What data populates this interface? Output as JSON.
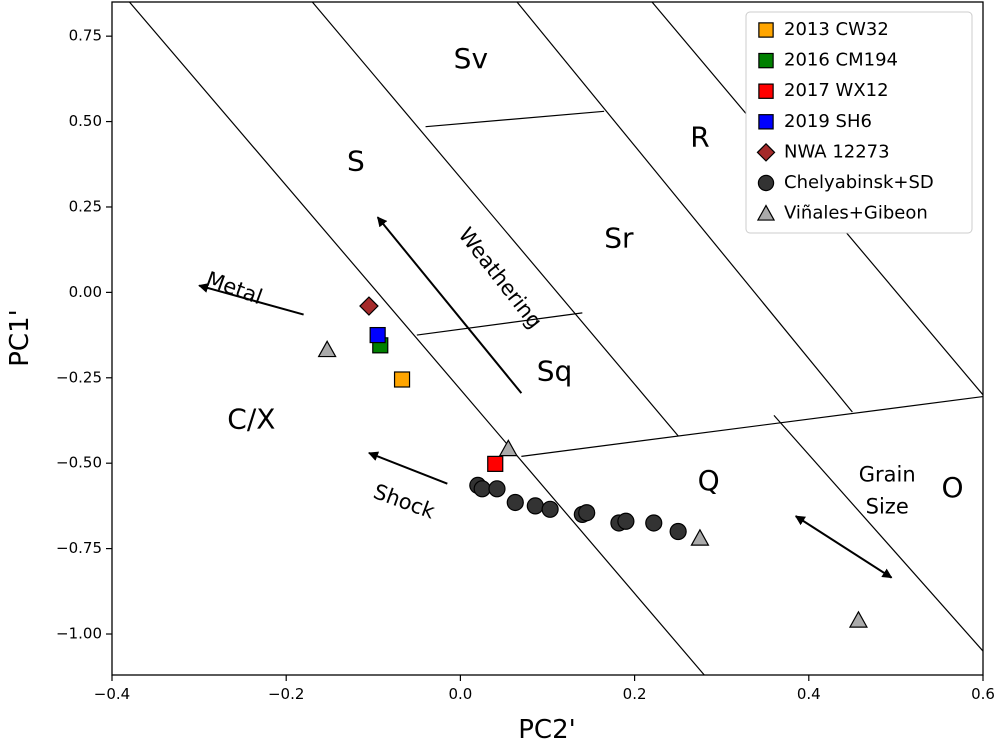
{
  "chart_data": {
    "type": "scatter",
    "xlabel": "PC2'",
    "ylabel": "PC1'",
    "xlim": [
      -0.4,
      0.6
    ],
    "ylim": [
      -1.12,
      0.85
    ],
    "xticks": [
      {
        "value": -0.4,
        "label": "−0.4"
      },
      {
        "value": -0.2,
        "label": "−0.2"
      },
      {
        "value": 0.0,
        "label": "0.0"
      },
      {
        "value": 0.2,
        "label": "0.2"
      },
      {
        "value": 0.4,
        "label": "0.4"
      },
      {
        "value": 0.6,
        "label": "0.6"
      }
    ],
    "yticks": [
      {
        "value": 0.75,
        "label": "0.75"
      },
      {
        "value": 0.5,
        "label": "0.50"
      },
      {
        "value": 0.25,
        "label": "0.25"
      },
      {
        "value": 0.0,
        "label": "0.00"
      },
      {
        "value": -0.25,
        "label": "−0.25"
      },
      {
        "value": -0.5,
        "label": "−0.50"
      },
      {
        "value": -0.75,
        "label": "−0.75"
      },
      {
        "value": -1.0,
        "label": "−1.00"
      }
    ],
    "boundaries": [
      {
        "from": [
          -0.38,
          0.85
        ],
        "to": [
          0.28,
          -1.12
        ]
      },
      {
        "from": [
          -0.17,
          0.85
        ],
        "to": [
          0.25,
          -0.42
        ]
      },
      {
        "from": [
          0.065,
          0.85
        ],
        "to": [
          0.45,
          -0.35
        ]
      },
      {
        "from": [
          0.22,
          0.85
        ],
        "to": [
          0.6,
          -0.3
        ]
      },
      {
        "from": [
          0.36,
          -0.36
        ],
        "to": [
          0.6,
          -1.05
        ]
      },
      {
        "from": [
          -0.04,
          0.485
        ],
        "to": [
          0.165,
          0.53
        ]
      },
      {
        "from": [
          -0.05,
          -0.125
        ],
        "to": [
          0.14,
          -0.06
        ]
      },
      {
        "from": [
          0.07,
          -0.48
        ],
        "to": [
          0.6,
          -0.305
        ]
      }
    ],
    "region_labels": [
      {
        "text": "Sv",
        "x": 0.012,
        "y": 0.68
      },
      {
        "text": "R",
        "x": 0.275,
        "y": 0.45
      },
      {
        "text": "S",
        "x": -0.12,
        "y": 0.38
      },
      {
        "text": "Sr",
        "x": 0.182,
        "y": 0.155
      },
      {
        "text": "Sq",
        "x": 0.108,
        "y": -0.235
      },
      {
        "text": "C/X",
        "x": -0.24,
        "y": -0.375
      },
      {
        "text": "Q",
        "x": 0.285,
        "y": -0.555
      },
      {
        "text": "O",
        "x": 0.565,
        "y": -0.575
      }
    ],
    "annotations": [
      {
        "text": "Metal",
        "x": -0.26,
        "y": 0.01,
        "rotation": 20,
        "lines": [
          "Metal"
        ]
      },
      {
        "text": "Weathering",
        "x": 0.045,
        "y": 0.04,
        "rotation": 52,
        "lines": [
          "Weathering"
        ]
      },
      {
        "text": "Shock",
        "x": -0.065,
        "y": -0.615,
        "rotation": 20,
        "lines": [
          "Shock"
        ]
      },
      {
        "text": "Grain Size",
        "x": 0.49,
        "y": -0.565,
        "rotation": 0,
        "lines": [
          "Grain",
          "Size"
        ]
      }
    ],
    "arrows": [
      {
        "name": "metal",
        "from": [
          -0.18,
          -0.065
        ],
        "to": [
          -0.3,
          0.02
        ],
        "heads": [
          "end"
        ]
      },
      {
        "name": "weathering",
        "from": [
          0.07,
          -0.295
        ],
        "to": [
          -0.095,
          0.22
        ],
        "heads": [
          "end"
        ]
      },
      {
        "name": "shock",
        "from": [
          -0.015,
          -0.56
        ],
        "to": [
          -0.105,
          -0.47
        ],
        "heads": [
          "end"
        ]
      },
      {
        "name": "grain-size",
        "from": [
          0.385,
          -0.655
        ],
        "to": [
          0.495,
          -0.835
        ],
        "heads": [
          "start",
          "end"
        ]
      }
    ],
    "series": [
      {
        "name": "2013 CW32",
        "marker": "square",
        "color": "#ffa500",
        "points": [
          [
            -0.067,
            -0.255
          ]
        ]
      },
      {
        "name": "2016 CM194",
        "marker": "square",
        "color": "#008000",
        "points": [
          [
            -0.092,
            -0.155
          ]
        ]
      },
      {
        "name": "2017 WX12",
        "marker": "square",
        "color": "#ff0000",
        "points": [
          [
            0.04,
            -0.502
          ]
        ]
      },
      {
        "name": "2019 SH6",
        "marker": "square",
        "color": "#0000ff",
        "points": [
          [
            -0.095,
            -0.125
          ]
        ]
      },
      {
        "name": "NWA 12273",
        "marker": "diamond",
        "color": "#a52a2a",
        "points": [
          [
            -0.105,
            -0.04
          ]
        ]
      },
      {
        "name": "Chelyabinsk+SD",
        "marker": "circle",
        "color": "#333333",
        "points": [
          [
            0.02,
            -0.565
          ],
          [
            0.025,
            -0.575
          ],
          [
            0.042,
            -0.575
          ],
          [
            0.063,
            -0.615
          ],
          [
            0.086,
            -0.625
          ],
          [
            0.103,
            -0.635
          ],
          [
            0.14,
            -0.65
          ],
          [
            0.145,
            -0.645
          ],
          [
            0.182,
            -0.675
          ],
          [
            0.19,
            -0.67
          ],
          [
            0.222,
            -0.675
          ],
          [
            0.25,
            -0.7
          ]
        ]
      },
      {
        "name": "Viñales+Gibeon",
        "marker": "triangle",
        "color": "#aaaaaa",
        "points": [
          [
            -0.153,
            -0.168
          ],
          [
            0.055,
            -0.458
          ],
          [
            0.275,
            -0.72
          ],
          [
            0.457,
            -0.96
          ]
        ]
      }
    ],
    "legend_position": "top-right"
  }
}
